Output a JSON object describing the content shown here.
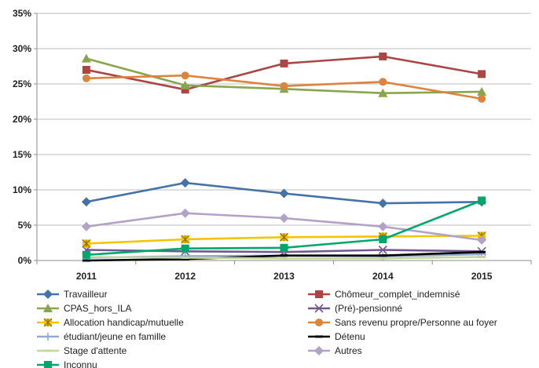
{
  "chart_data": {
    "type": "line",
    "title": "",
    "xlabel": "",
    "ylabel": "",
    "x": [
      "2011",
      "2012",
      "2013",
      "2014",
      "2015"
    ],
    "ylim": [
      0,
      35
    ],
    "y_ticks": [
      0,
      5,
      10,
      15,
      20,
      25,
      30,
      35
    ],
    "y_tick_labels": [
      "0%",
      "5%",
      "10%",
      "15%",
      "20%",
      "25%",
      "30%",
      "35%"
    ],
    "grid": "horizontal",
    "legend_position": "bottom",
    "series": [
      {
        "name": "Travailleur",
        "color": "#4572A7",
        "marker": "diamond",
        "values": [
          8.3,
          11.0,
          9.5,
          8.1,
          8.3
        ]
      },
      {
        "name": "Chômeur_complet_indemnisé",
        "color": "#AA4643",
        "marker": "square",
        "values": [
          27.0,
          24.2,
          27.9,
          28.9,
          26.4
        ]
      },
      {
        "name": "CPAS_hors_ILA",
        "color": "#89A54E",
        "marker": "triangle",
        "values": [
          28.6,
          24.8,
          24.3,
          23.7,
          23.9
        ]
      },
      {
        "name": "(Pré)-pensionné",
        "color": "#71588F",
        "marker": "x",
        "values": [
          1.5,
          1.3,
          1.2,
          1.5,
          1.3
        ]
      },
      {
        "name": "Allocation handicap/mutuelle",
        "color": "#F5C400",
        "marker": "star",
        "values": [
          2.4,
          3.0,
          3.3,
          3.4,
          3.5
        ]
      },
      {
        "name": "Sans revenu propre/Personne au foyer",
        "color": "#DB843D",
        "marker": "circle",
        "values": [
          25.8,
          26.2,
          24.7,
          25.3,
          22.9
        ]
      },
      {
        "name": "étudiant/jeune en famille",
        "color": "#93A9CF",
        "marker": "plus",
        "values": [
          0.4,
          0.6,
          0.7,
          0.6,
          0.9
        ]
      },
      {
        "name": "Détenu",
        "color": "#000000",
        "marker": "dash",
        "values": [
          0.0,
          0.2,
          0.7,
          0.7,
          1.2
        ]
      },
      {
        "name": "Stage d'attente",
        "color": "#C3D69B",
        "marker": "dash",
        "values": [
          0.5,
          0.4,
          0.3,
          0.3,
          0.5
        ]
      },
      {
        "name": "Autres",
        "color": "#B3A2C7",
        "marker": "diamond",
        "values": [
          4.8,
          6.7,
          6.0,
          4.8,
          2.9
        ]
      },
      {
        "name": "Inconnu",
        "color": "#00A66B",
        "marker": "square",
        "values": [
          0.8,
          1.7,
          1.8,
          3.0,
          8.5
        ]
      }
    ]
  }
}
